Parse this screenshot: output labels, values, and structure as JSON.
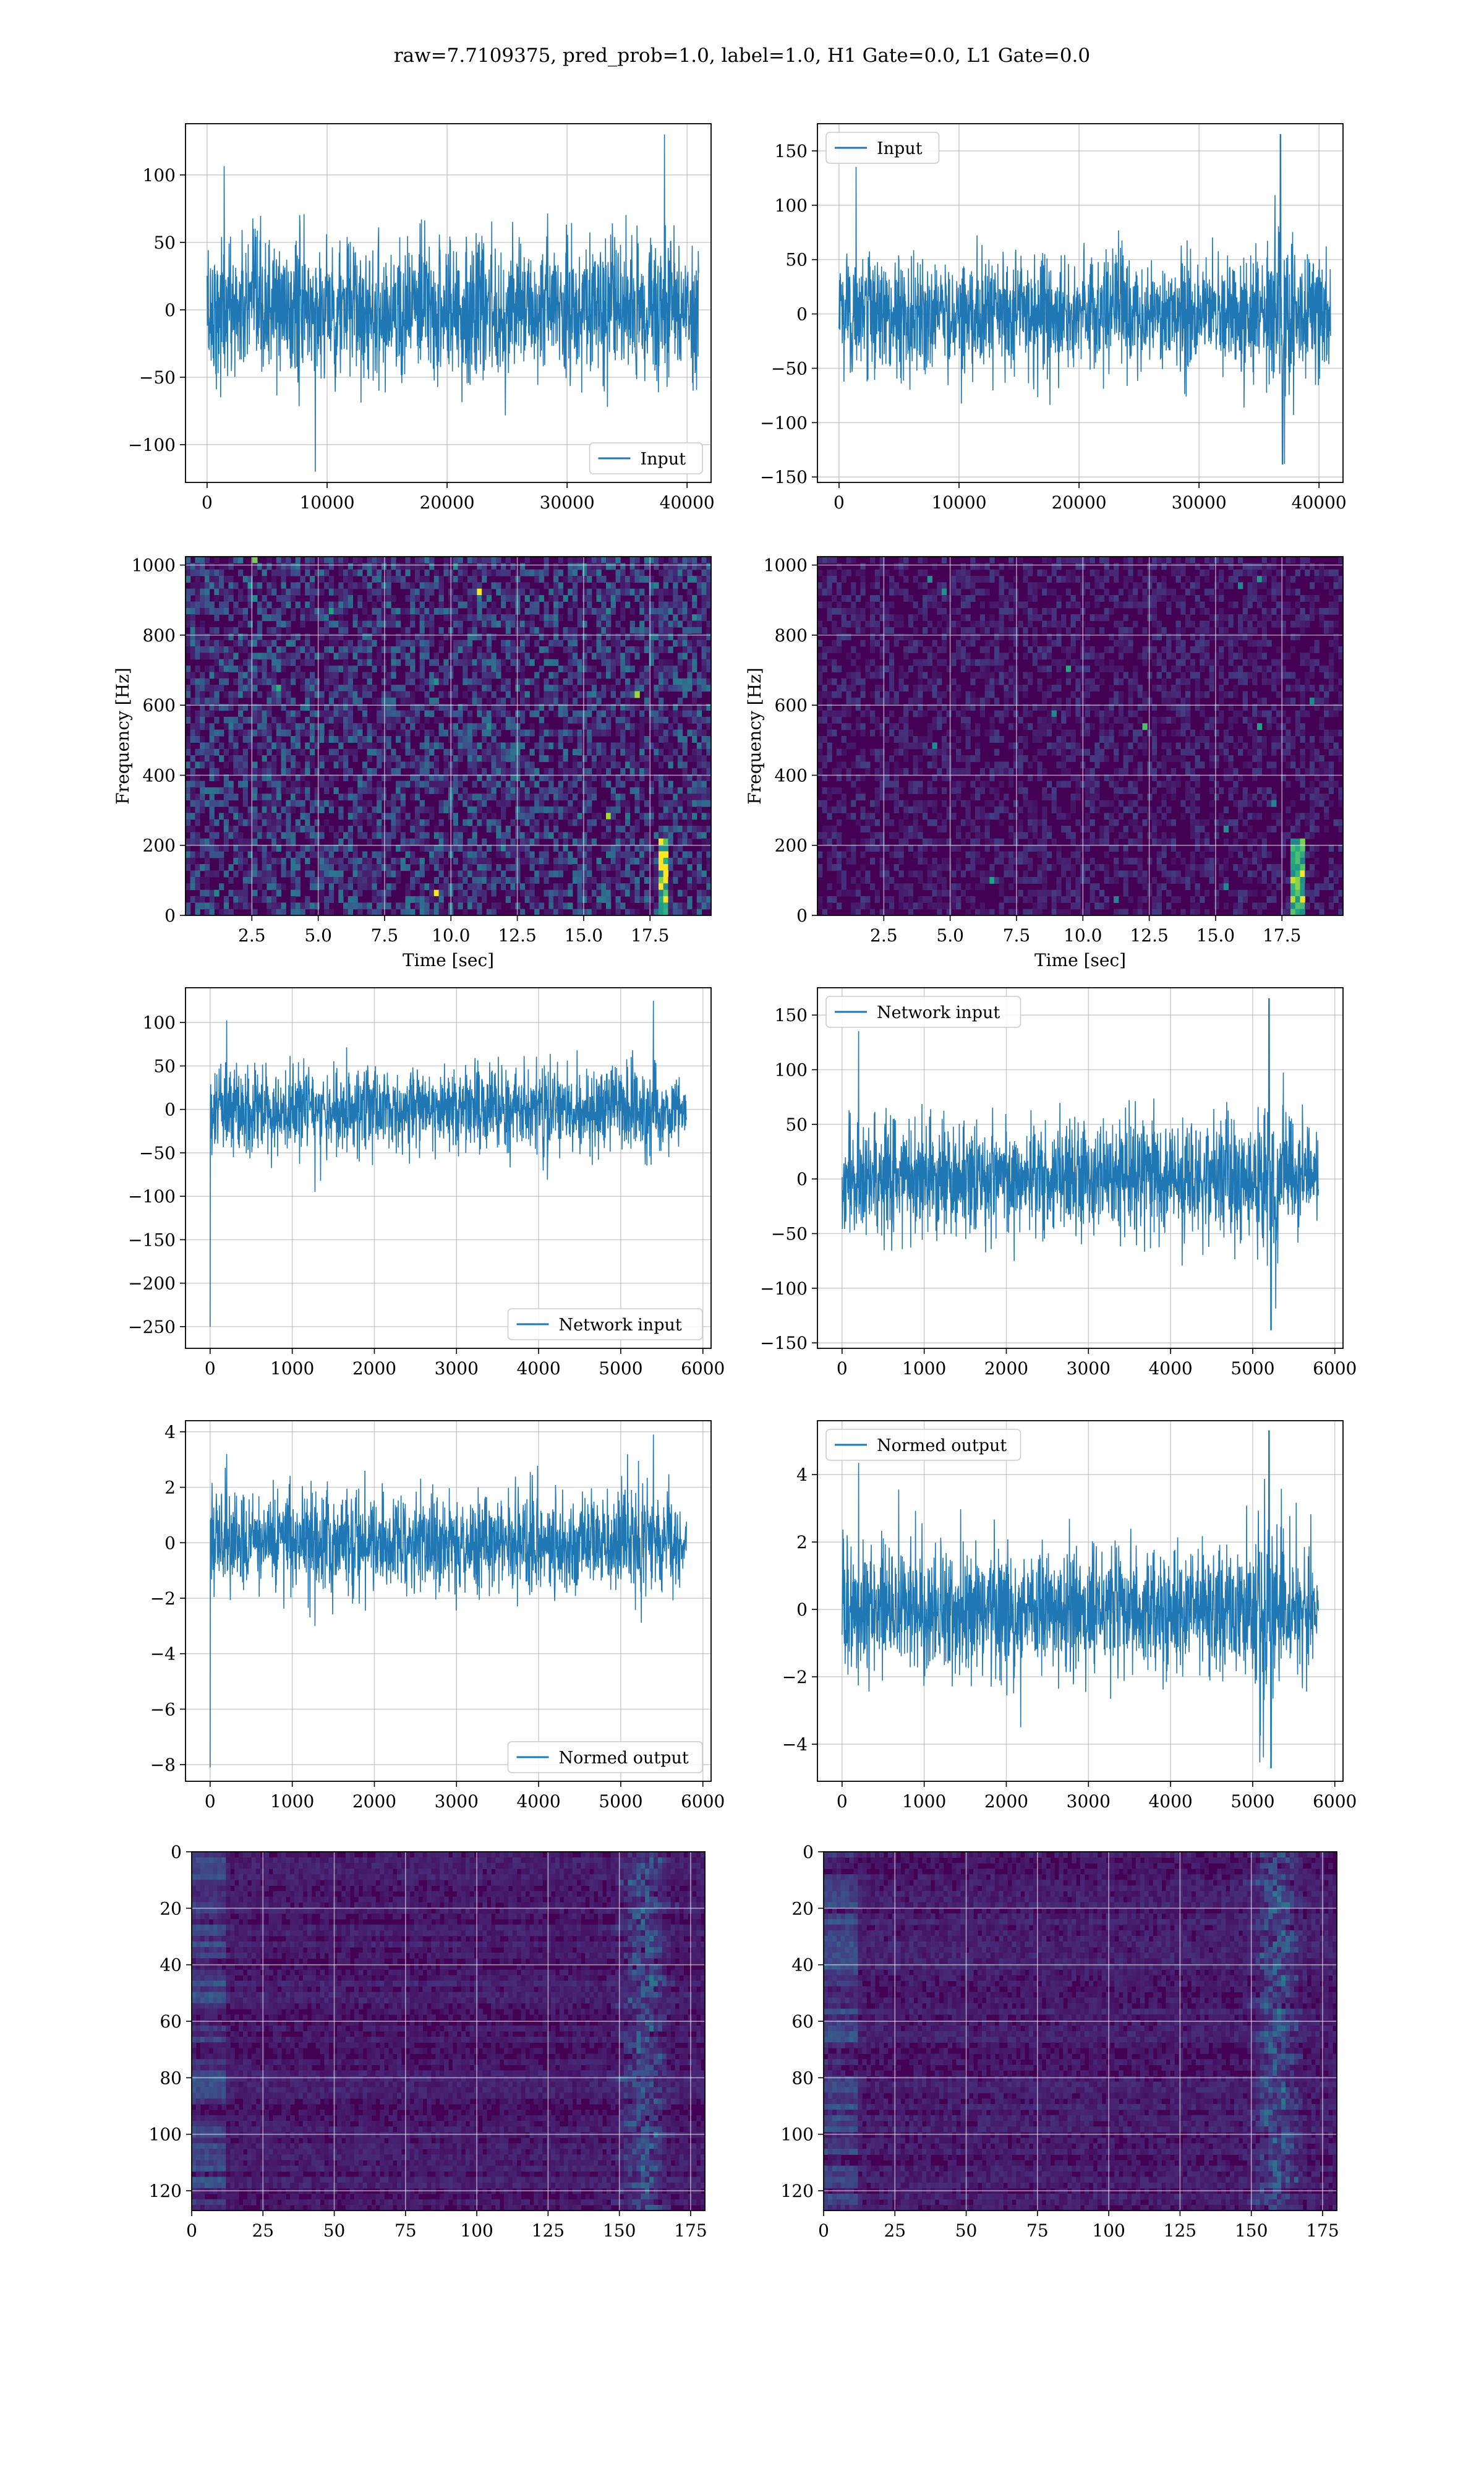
{
  "figure": {
    "title": "raw=7.7109375, pred_prob=1.0, label=1.0, H1 Gate=0.0, L1 Gate=0.0"
  },
  "colors": {
    "signal": "#1f77b4",
    "grid": "#b0b0b0",
    "spec_low": "#440154",
    "spec_mid": "#21918c",
    "spec_high": "#fde725"
  },
  "chart_data": [
    {
      "id": "input-h1",
      "type": "line",
      "legend": "Input",
      "legend_loc": "lower-right",
      "xlim": [
        -1800,
        42000
      ],
      "ylim": [
        -128,
        138
      ],
      "xticks": [
        0,
        10000,
        20000,
        30000,
        40000
      ],
      "yticks": [
        -100,
        -50,
        0,
        50,
        100
      ],
      "series": [
        {
          "x_range": [
            0,
            40960
          ],
          "sigma": 26,
          "peak": 130,
          "trough": -120,
          "edge_taper": false
        }
      ]
    },
    {
      "id": "input-l1",
      "type": "line",
      "legend": "Input",
      "legend_loc": "upper-left",
      "xlim": [
        -1800,
        42000
      ],
      "ylim": [
        -155,
        175
      ],
      "xticks": [
        0,
        10000,
        20000,
        30000,
        40000
      ],
      "yticks": [
        -150,
        -100,
        -50,
        0,
        50,
        100,
        150
      ],
      "series": [
        {
          "x_range": [
            0,
            40960
          ],
          "sigma": 27,
          "peak": 165,
          "trough": -138,
          "burst_at": 36800,
          "edge_taper": false
        }
      ]
    },
    {
      "id": "spec-h1",
      "type": "heatmap",
      "xlabel": "Time [sec]",
      "ylabel": "Frequency [Hz]",
      "xlim": [
        0,
        19.8
      ],
      "ylim": [
        0,
        1024
      ],
      "xticks": [
        2.5,
        5.0,
        7.5,
        10.0,
        12.5,
        15.0,
        17.5
      ],
      "yticks": [
        0,
        200,
        400,
        600,
        800,
        1000
      ],
      "noise": 0.34,
      "chirp_at": 17.9
    },
    {
      "id": "spec-l1",
      "type": "heatmap",
      "xlabel": "Time [sec]",
      "ylabel": "Frequency [Hz]",
      "xlim": [
        0,
        19.8
      ],
      "ylim": [
        0,
        1024
      ],
      "xticks": [
        2.5,
        5.0,
        7.5,
        10.0,
        12.5,
        15.0,
        17.5
      ],
      "yticks": [
        0,
        200,
        400,
        600,
        800,
        1000
      ],
      "noise": 0.16,
      "chirp_at": 18.0
    },
    {
      "id": "net-h1",
      "type": "line",
      "legend": "Network input",
      "legend_loc": "lower-right",
      "xlim": [
        -300,
        6100
      ],
      "ylim": [
        -275,
        140
      ],
      "xticks": [
        0,
        1000,
        2000,
        3000,
        4000,
        5000,
        6000
      ],
      "yticks": [
        -250,
        -200,
        -150,
        -100,
        -50,
        0,
        50,
        100
      ],
      "series": [
        {
          "x_range": [
            0,
            5800
          ],
          "sigma": 24,
          "peak": 125,
          "trough": -95,
          "spike_at_start": -250,
          "edge_taper": true
        }
      ]
    },
    {
      "id": "net-l1",
      "type": "line",
      "legend": "Network input",
      "legend_loc": "upper-left",
      "xlim": [
        -300,
        6100
      ],
      "ylim": [
        -155,
        175
      ],
      "xticks": [
        0,
        1000,
        2000,
        3000,
        4000,
        5000,
        6000
      ],
      "yticks": [
        -150,
        -100,
        -50,
        0,
        50,
        100,
        150
      ],
      "series": [
        {
          "x_range": [
            0,
            5800
          ],
          "sigma": 26,
          "peak": 165,
          "trough": -138,
          "burst_at": 5200,
          "edge_taper": true
        }
      ]
    },
    {
      "id": "norm-h1",
      "type": "line",
      "legend": "Normed output",
      "legend_loc": "lower-right",
      "xlim": [
        -300,
        6100
      ],
      "ylim": [
        -8.6,
        4.4
      ],
      "xticks": [
        0,
        1000,
        2000,
        3000,
        4000,
        5000,
        6000
      ],
      "yticks": [
        -8,
        -6,
        -4,
        -2,
        0,
        2,
        4
      ],
      "series": [
        {
          "x_range": [
            0,
            5800
          ],
          "sigma": 0.9,
          "peak": 3.9,
          "trough": -3.0,
          "spike_at_start": -8.1,
          "edge_taper": true
        }
      ]
    },
    {
      "id": "norm-l1",
      "type": "line",
      "legend": "Normed output",
      "legend_loc": "upper-left",
      "xlim": [
        -300,
        6100
      ],
      "ylim": [
        -5.1,
        5.6
      ],
      "xticks": [
        0,
        1000,
        2000,
        3000,
        4000,
        5000,
        6000
      ],
      "yticks": [
        -4,
        -2,
        0,
        2,
        4
      ],
      "series": [
        {
          "x_range": [
            0,
            5800
          ],
          "sigma": 0.95,
          "peak": 5.3,
          "trough": -4.7,
          "burst_at": 5200,
          "edge_taper": true
        }
      ]
    },
    {
      "id": "feat-h1",
      "type": "heatmap",
      "xlim": [
        0,
        180
      ],
      "ylim": [
        127,
        0
      ],
      "xticks": [
        0,
        25,
        50,
        75,
        100,
        125,
        150,
        175
      ],
      "yticks": [
        0,
        20,
        40,
        60,
        80,
        100,
        120
      ],
      "noise": 0.2,
      "band_at": 158
    },
    {
      "id": "feat-l1",
      "type": "heatmap",
      "xlim": [
        0,
        180
      ],
      "ylim": [
        127,
        0
      ],
      "xticks": [
        0,
        25,
        50,
        75,
        100,
        125,
        150,
        175
      ],
      "yticks": [
        0,
        20,
        40,
        60,
        80,
        100,
        120
      ],
      "noise": 0.22,
      "band_at": 158
    }
  ]
}
